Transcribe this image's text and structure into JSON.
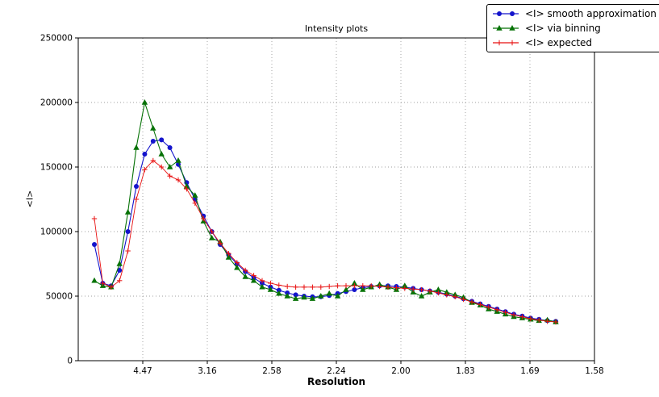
{
  "figure": {
    "background": "#ffffff"
  },
  "chart_data": {
    "type": "line",
    "title": "Intensity plots",
    "xlabel": "Resolution",
    "ylabel": "<I>",
    "grid": "dotted",
    "legend_position": "upper right outside",
    "x_axis": {
      "unit": "resolution (linear in 1/d^2)",
      "range": [
        0,
        0.4
      ],
      "tick_positions": [
        0.05,
        0.1,
        0.15,
        0.2,
        0.25,
        0.3,
        0.35,
        0.4
      ],
      "tick_labels": [
        "4.47",
        "3.16",
        "2.58",
        "2.24",
        "2.00",
        "1.83",
        "1.69",
        "1.58"
      ]
    },
    "y_axis": {
      "range": [
        0,
        250000
      ],
      "tick_positions": [
        0,
        50000,
        100000,
        150000,
        200000,
        250000
      ],
      "tick_labels": [
        "0",
        "50000",
        "100000",
        "150000",
        "200000",
        "250000"
      ]
    },
    "x": [
      0.0125,
      0.019,
      0.0255,
      0.032,
      0.0385,
      0.045,
      0.0515,
      0.058,
      0.0645,
      0.071,
      0.0775,
      0.084,
      0.0905,
      0.097,
      0.1035,
      0.11,
      0.1165,
      0.123,
      0.1295,
      0.136,
      0.1425,
      0.149,
      0.1555,
      0.162,
      0.1685,
      0.175,
      0.1815,
      0.188,
      0.1945,
      0.201,
      0.2075,
      0.214,
      0.2205,
      0.227,
      0.2335,
      0.24,
      0.2465,
      0.253,
      0.2595,
      0.266,
      0.2725,
      0.279,
      0.2855,
      0.292,
      0.2985,
      0.305,
      0.3115,
      0.318,
      0.3245,
      0.331,
      0.3375,
      0.344,
      0.3505,
      0.357,
      0.3635,
      0.37
    ],
    "series": [
      {
        "name": "<I> smooth approximation",
        "color": "#1414cc",
        "marker": "circle",
        "values": [
          90000,
          60000,
          58000,
          70000,
          100000,
          135000,
          160000,
          170000,
          171000,
          165000,
          152000,
          138000,
          125000,
          112000,
          100000,
          90000,
          82000,
          75000,
          69000,
          64000,
          60000,
          57000,
          54500,
          52500,
          51000,
          50000,
          49500,
          49500,
          50500,
          52000,
          53500,
          55000,
          56500,
          57500,
          58000,
          58000,
          57500,
          57000,
          56000,
          55000,
          54000,
          53000,
          51500,
          50000,
          48000,
          46000,
          44000,
          42000,
          40000,
          38000,
          36000,
          34500,
          33000,
          32000,
          31000,
          30500
        ]
      },
      {
        "name": "<I> via binning",
        "color": "#067206",
        "marker": "triangle",
        "values": [
          62000,
          58000,
          57000,
          75000,
          115000,
          165000,
          200000,
          180000,
          160000,
          150000,
          155000,
          135000,
          128000,
          108000,
          95000,
          92000,
          80000,
          72000,
          65000,
          62000,
          57000,
          55000,
          52000,
          50000,
          48000,
          49000,
          48000,
          50000,
          52000,
          50000,
          55000,
          60000,
          55000,
          57000,
          59000,
          57000,
          55000,
          58000,
          53000,
          50000,
          53000,
          55000,
          53000,
          51000,
          49000,
          45000,
          43000,
          40000,
          38000,
          36000,
          34000,
          33000,
          32000,
          31000,
          31500,
          30000
        ]
      },
      {
        "name": "<I> expected",
        "color": "#e81010",
        "marker": "plus",
        "values": [
          110000,
          60000,
          57000,
          62000,
          85000,
          125000,
          148000,
          155000,
          150000,
          143000,
          140000,
          133000,
          122000,
          110000,
          100000,
          91000,
          83000,
          76000,
          70000,
          66000,
          62000,
          60000,
          58500,
          57500,
          57000,
          57000,
          57000,
          57000,
          57500,
          58000,
          58000,
          58000,
          58000,
          58000,
          57500,
          57000,
          56500,
          56000,
          55500,
          55000,
          54000,
          52500,
          51000,
          49500,
          47500,
          45500,
          43500,
          41500,
          39500,
          37500,
          35500,
          34000,
          32500,
          31500,
          30500,
          30000
        ]
      }
    ]
  }
}
